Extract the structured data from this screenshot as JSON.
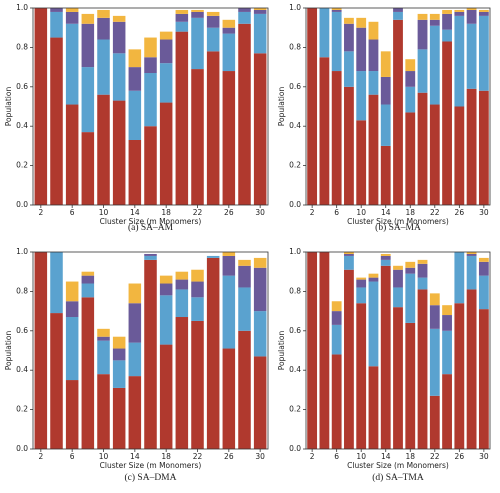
{
  "chart_data": [
    {
      "type": "bar",
      "caption": "(a) SA–AM",
      "xlabel": "Cluster Size (m Monomers)",
      "ylabel": "Population",
      "x": [
        2,
        4,
        6,
        8,
        10,
        12,
        14,
        16,
        18,
        20,
        22,
        24,
        26,
        28,
        30
      ],
      "xlim": [
        1,
        31
      ],
      "xticks": [
        2,
        6,
        10,
        14,
        18,
        22,
        26,
        30
      ],
      "ylim": [
        0,
        1
      ],
      "yticks": [
        {
          "value": 0,
          "label": "0.0"
        },
        0.2,
        0.4,
        0.6,
        0.8,
        {
          "value": 1,
          "label": "1.0"
        }
      ],
      "stacked": true,
      "series": [
        {
          "color": "#b0392e",
          "values": [
            1.0,
            0.85,
            0.51,
            0.37,
            0.56,
            0.53,
            0.33,
            0.4,
            0.52,
            0.88,
            0.69,
            0.78,
            0.68,
            0.92,
            0.77
          ]
        },
        {
          "color": "#5aa2cf",
          "values": [
            0,
            0.13,
            0.41,
            0.33,
            0.28,
            0.24,
            0.25,
            0.27,
            0.2,
            0.05,
            0.26,
            0.12,
            0.19,
            0.06,
            0.2
          ]
        },
        {
          "color": "#6a5a99",
          "values": [
            0,
            0.02,
            0.06,
            0.22,
            0.11,
            0.16,
            0.12,
            0.08,
            0.12,
            0.04,
            0.03,
            0.06,
            0.03,
            0.02,
            0.02
          ]
        },
        {
          "color": "#f2b640",
          "values": [
            0,
            0,
            0.02,
            0.05,
            0.04,
            0.03,
            0.09,
            0.1,
            0.04,
            0.02,
            0.01,
            0.02,
            0.04,
            0,
            0.01
          ]
        }
      ]
    },
    {
      "type": "bar",
      "caption": "(b) SA–MA",
      "xlabel": "Cluster Size (m Monomers)",
      "ylabel": "Population",
      "x": [
        2,
        4,
        6,
        8,
        10,
        12,
        14,
        16,
        18,
        20,
        22,
        24,
        26,
        28,
        30
      ],
      "xlim": [
        1,
        31
      ],
      "xticks": [
        2,
        6,
        10,
        14,
        18,
        22,
        26,
        30
      ],
      "ylim": [
        0,
        1
      ],
      "yticks": [
        {
          "value": 0,
          "label": "0.0"
        },
        0.2,
        0.4,
        0.6,
        0.8,
        {
          "value": 1,
          "label": "1.0"
        }
      ],
      "stacked": true,
      "series": [
        {
          "color": "#b0392e",
          "values": [
            1.0,
            0.75,
            0.68,
            0.6,
            0.43,
            0.56,
            0.3,
            0.94,
            0.47,
            0.57,
            0.51,
            0.83,
            0.5,
            0.59,
            0.58
          ]
        },
        {
          "color": "#5aa2cf",
          "values": [
            0,
            0.25,
            0.3,
            0.18,
            0.25,
            0.12,
            0.21,
            0.04,
            0.13,
            0.22,
            0.4,
            0.06,
            0.46,
            0.33,
            0.38
          ]
        },
        {
          "color": "#6a5a99",
          "values": [
            0,
            0,
            0.01,
            0.14,
            0.22,
            0.16,
            0.14,
            0.02,
            0.08,
            0.15,
            0.03,
            0.08,
            0.02,
            0.07,
            0.02
          ]
        },
        {
          "color": "#f2b640",
          "values": [
            0,
            0,
            0.01,
            0.03,
            0.05,
            0.09,
            0.13,
            0,
            0.06,
            0.03,
            0.03,
            0.02,
            0.01,
            0.01,
            0.01
          ]
        }
      ]
    },
    {
      "type": "bar",
      "caption": "(c) SA–DMA",
      "xlabel": "Cluster Size (m Monomers)",
      "ylabel": "Population",
      "x": [
        2,
        4,
        6,
        8,
        10,
        12,
        14,
        16,
        18,
        20,
        22,
        24,
        26,
        28,
        30
      ],
      "xlim": [
        1,
        31
      ],
      "xticks": [
        2,
        6,
        10,
        14,
        18,
        22,
        26,
        30
      ],
      "ylim": [
        0,
        1
      ],
      "yticks": [
        {
          "value": 0,
          "label": "0.0"
        },
        0.2,
        0.4,
        0.6,
        0.8,
        {
          "value": 1,
          "label": "1.0"
        }
      ],
      "stacked": true,
      "series": [
        {
          "color": "#b0392e",
          "values": [
            1.0,
            0.69,
            0.35,
            0.77,
            0.38,
            0.31,
            0.37,
            0.96,
            0.53,
            0.67,
            0.65,
            0.97,
            0.51,
            0.6,
            0.47
          ]
        },
        {
          "color": "#5aa2cf",
          "values": [
            0,
            0.31,
            0.32,
            0.07,
            0.17,
            0.14,
            0.17,
            0.02,
            0.25,
            0.14,
            0.12,
            0.01,
            0.37,
            0.22,
            0.23
          ]
        },
        {
          "color": "#6a5a99",
          "values": [
            0,
            0,
            0.08,
            0.04,
            0.02,
            0.06,
            0.2,
            0.01,
            0.06,
            0.05,
            0.08,
            0,
            0.1,
            0.11,
            0.22
          ]
        },
        {
          "color": "#f2b640",
          "values": [
            0,
            0,
            0.1,
            0.02,
            0.04,
            0.06,
            0.1,
            0,
            0.04,
            0.04,
            0.06,
            0,
            0.02,
            0.03,
            0.05
          ]
        }
      ]
    },
    {
      "type": "bar",
      "caption": "(d) SA–TMA",
      "xlabel": "Cluster Size (m Monomers)",
      "ylabel": "Population",
      "x": [
        2,
        4,
        6,
        8,
        10,
        12,
        14,
        16,
        18,
        20,
        22,
        24,
        26,
        28,
        30
      ],
      "xlim": [
        1,
        31
      ],
      "xticks": [
        2,
        6,
        10,
        14,
        18,
        22,
        26,
        30
      ],
      "ylim": [
        0,
        1
      ],
      "yticks": [
        {
          "value": 0,
          "label": "0.0"
        },
        0.2,
        0.4,
        0.6,
        0.8,
        {
          "value": 1,
          "label": "1.0"
        }
      ],
      "stacked": true,
      "series": [
        {
          "color": "#b0392e",
          "values": [
            1.0,
            1.0,
            0.48,
            0.91,
            0.74,
            0.42,
            0.93,
            0.72,
            0.64,
            0.81,
            0.27,
            0.38,
            0.74,
            0.81,
            0.71
          ]
        },
        {
          "color": "#5aa2cf",
          "values": [
            0,
            0,
            0.15,
            0.07,
            0.08,
            0.43,
            0.03,
            0.1,
            0.25,
            0.06,
            0.34,
            0.22,
            0.26,
            0.17,
            0.17
          ]
        },
        {
          "color": "#6a5a99",
          "values": [
            0,
            0,
            0.07,
            0.01,
            0.04,
            0.02,
            0.02,
            0.09,
            0.03,
            0.07,
            0.12,
            0.08,
            0,
            0.01,
            0.07
          ]
        },
        {
          "color": "#f2b640",
          "values": [
            0,
            0,
            0.05,
            0.01,
            0.01,
            0.02,
            0.01,
            0.02,
            0.03,
            0.02,
            0.06,
            0.05,
            0,
            0.01,
            0.02
          ]
        }
      ]
    }
  ]
}
